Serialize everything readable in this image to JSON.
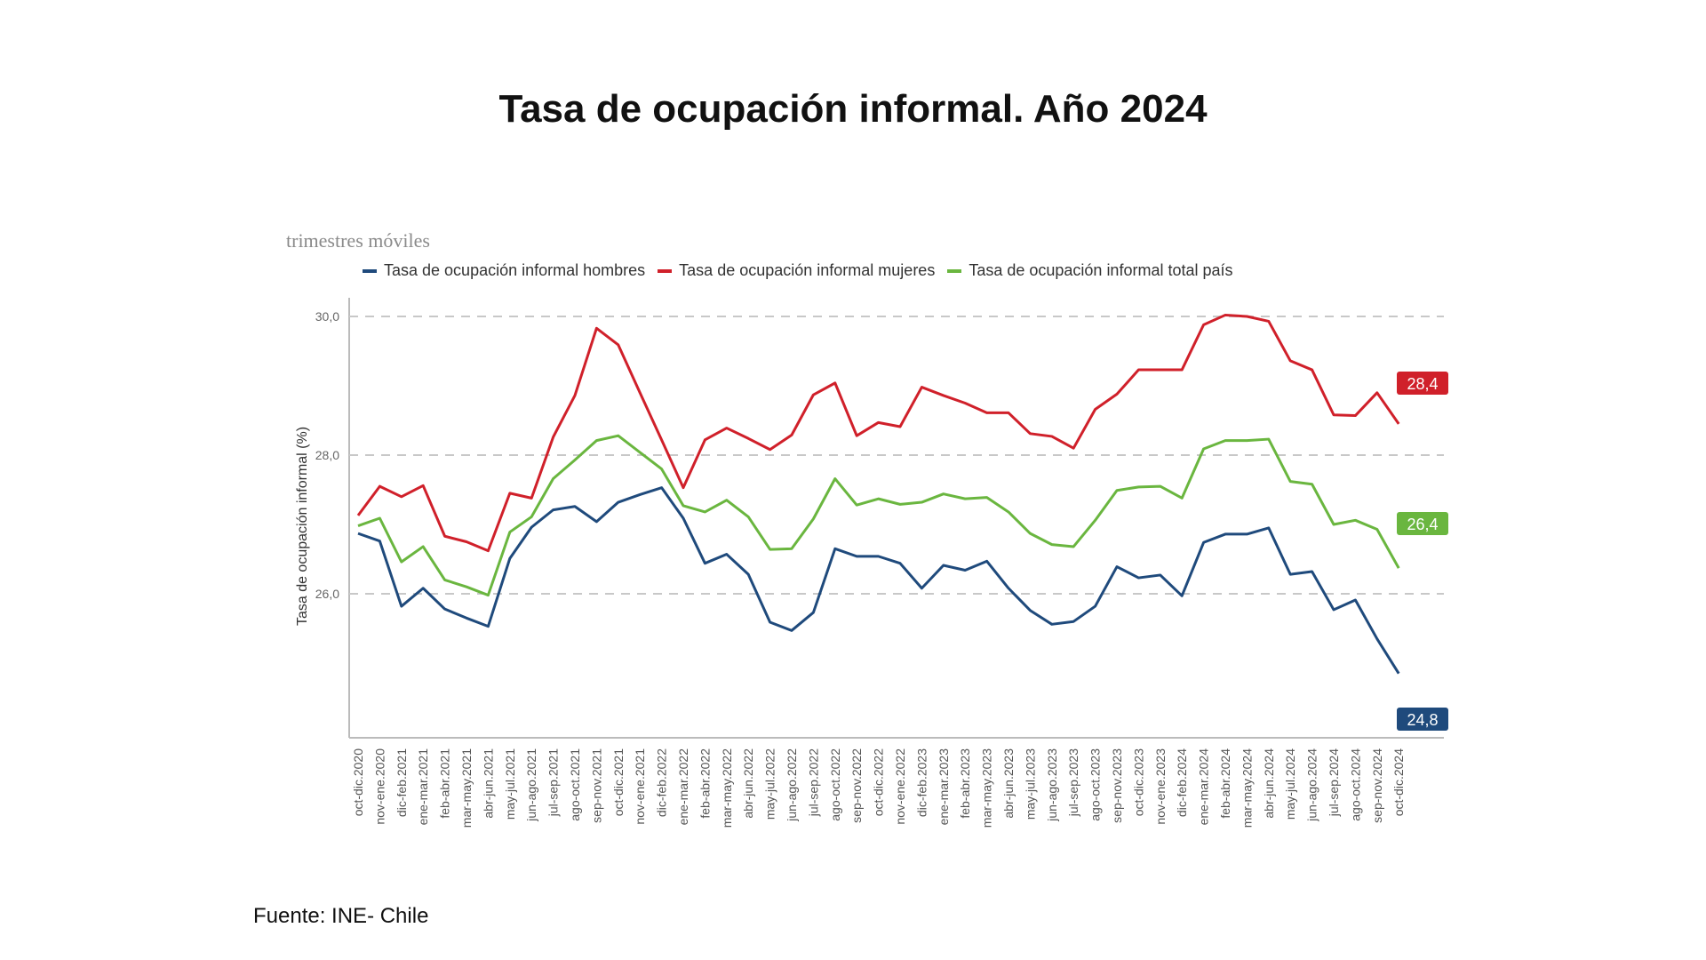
{
  "title": "Tasa de ocupación informal. Año 2024",
  "subtitle": "trimestres móviles",
  "footer": "Fuente: INE- Chile",
  "legend": [
    {
      "label": "Tasa de ocupación informal hombres",
      "color": "#1f4a7c"
    },
    {
      "label": "Tasa de ocupación informal mujeres",
      "color": "#d0202a"
    },
    {
      "label": "Tasa de ocupación informal total país",
      "color": "#6ab63f"
    }
  ],
  "chart_data": {
    "type": "line",
    "title": "Tasa de ocupación informal. Año 2024",
    "subtitle": "trimestres móviles",
    "xlabel": "",
    "ylabel": "Tasa de ocupación informal (%)",
    "ylim": [
      24.5,
      30.3
    ],
    "yticks": [
      "26,0",
      "28,0",
      "30,0"
    ],
    "grid": "horizontal dashed",
    "legend_position": "top",
    "categories": [
      "oct-dic.2020",
      "nov-ene.2020",
      "dic-feb.2021",
      "ene-mar.2021",
      "feb-abr.2021",
      "mar-may.2021",
      "abr-jun.2021",
      "may-jul.2021",
      "jun-ago.2021",
      "jul-sep.2021",
      "ago-oct.2021",
      "sep-nov.2021",
      "oct-dic.2021",
      "nov-ene.2021",
      "dic-feb.2022",
      "ene-mar.2022",
      "feb-abr.2022",
      "mar-may.2022",
      "abr-jun.2022",
      "may-jul.2022",
      "jun-ago.2022",
      "jul-sep.2022",
      "ago-oct.2022",
      "sep-nov.2022",
      "oct-dic.2022",
      "nov-ene.2022",
      "dic-feb.2023",
      "ene-mar.2023",
      "feb-abr.2023",
      "mar-may.2023",
      "abr-jun.2023",
      "may-jul.2023",
      "jun-ago.2023",
      "jul-sep.2023",
      "ago-oct.2023",
      "sep-nov.2023",
      "oct-dic.2023",
      "nov-ene.2023",
      "dic-feb.2024",
      "ene-mar.2024",
      "feb-abr.2024",
      "mar-may.2024",
      "abr-jun.2024",
      "may-jul.2024",
      "jun-ago.2024",
      "jul-sep.2024",
      "ago-oct.2024",
      "sep-nov.2024",
      "oct-dic.2024"
    ],
    "series": [
      {
        "name": "Tasa de ocupación informal hombres",
        "color": "#1f4a7c",
        "end_label": "24,8",
        "values": [
          26.87,
          26.76,
          25.82,
          26.08,
          25.78,
          25.65,
          25.53,
          26.51,
          26.96,
          27.21,
          27.26,
          27.04,
          27.32,
          27.43,
          27.53,
          27.09,
          26.44,
          26.57,
          26.28,
          25.59,
          25.47,
          25.73,
          26.65,
          26.54,
          26.54,
          26.44,
          26.08,
          26.41,
          26.34,
          26.47,
          26.08,
          25.76,
          25.56,
          25.6,
          25.82,
          26.39,
          26.23,
          26.27,
          25.97,
          26.74,
          26.86,
          26.86,
          26.95,
          26.28,
          26.32,
          25.77,
          25.91,
          25.35,
          24.85
        ]
      },
      {
        "name": "Tasa de ocupación informal mujeres",
        "color": "#d0202a",
        "end_label": "28,4",
        "values": [
          27.13,
          27.55,
          27.4,
          27.56,
          26.83,
          26.75,
          26.62,
          27.45,
          27.38,
          28.26,
          28.86,
          29.83,
          29.59,
          28.9,
          28.22,
          27.53,
          28.22,
          28.39,
          28.24,
          28.08,
          28.29,
          28.87,
          29.04,
          28.28,
          28.47,
          28.41,
          28.98,
          28.86,
          28.75,
          28.61,
          28.61,
          28.31,
          28.27,
          28.1,
          28.66,
          28.88,
          29.23,
          29.23,
          29.23,
          29.88,
          30.02,
          30.0,
          29.93,
          29.36,
          29.23,
          28.58,
          28.57,
          28.9,
          28.45
        ]
      },
      {
        "name": "Tasa de ocupación informal total país",
        "color": "#6ab63f",
        "end_label": "26,4",
        "values": [
          26.98,
          27.09,
          26.46,
          26.68,
          26.2,
          26.1,
          25.98,
          26.89,
          27.11,
          27.66,
          27.93,
          28.21,
          28.28,
          28.04,
          27.8,
          27.27,
          27.18,
          27.35,
          27.11,
          26.64,
          26.65,
          27.08,
          27.66,
          27.28,
          27.37,
          27.29,
          27.32,
          27.44,
          27.37,
          27.39,
          27.18,
          26.87,
          26.71,
          26.68,
          27.06,
          27.49,
          27.54,
          27.55,
          27.38,
          28.09,
          28.21,
          28.21,
          28.23,
          27.62,
          27.58,
          27.0,
          27.06,
          26.93,
          26.37
        ]
      }
    ]
  }
}
